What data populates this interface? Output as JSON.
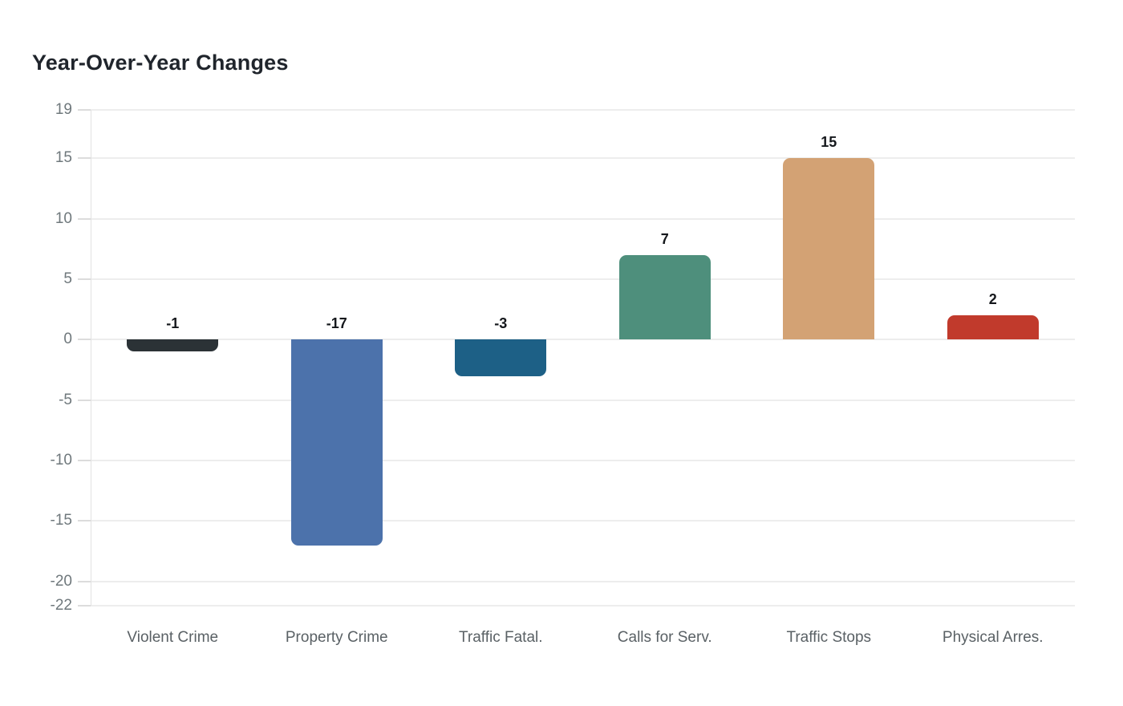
{
  "chart_data": {
    "type": "bar",
    "title": "Year-Over-Year Changes",
    "categories": [
      "Violent Crime",
      "Property Crime",
      "Traffic Fatal.",
      "Calls for Serv.",
      "Traffic Stops",
      "Physical Arres."
    ],
    "values": [
      -1,
      -17,
      -3,
      7,
      15,
      2
    ],
    "value_labels": [
      "-1",
      "-17",
      "-3",
      "7",
      "15",
      "2"
    ],
    "bar_colors": [
      "#2b3236",
      "#4c72ab",
      "#1d6086",
      "#4e8f7c",
      "#d3a274",
      "#c13a2c"
    ],
    "yticks": [
      19,
      15,
      10,
      5,
      0,
      -5,
      -10,
      -15,
      -20,
      -22
    ],
    "ylim": [
      -22,
      19
    ],
    "xlabel": "",
    "ylabel": "",
    "grid": true,
    "legend_position": "none",
    "background_color": "#ffffff",
    "grid_color": "#ededed",
    "axis_line_color": "#e2e2e2",
    "y_tick_label_color": "#6f787c",
    "x_tick_label_color": "#5a6165",
    "value_label_color": "#15181c",
    "title_color": "#20252c"
  }
}
